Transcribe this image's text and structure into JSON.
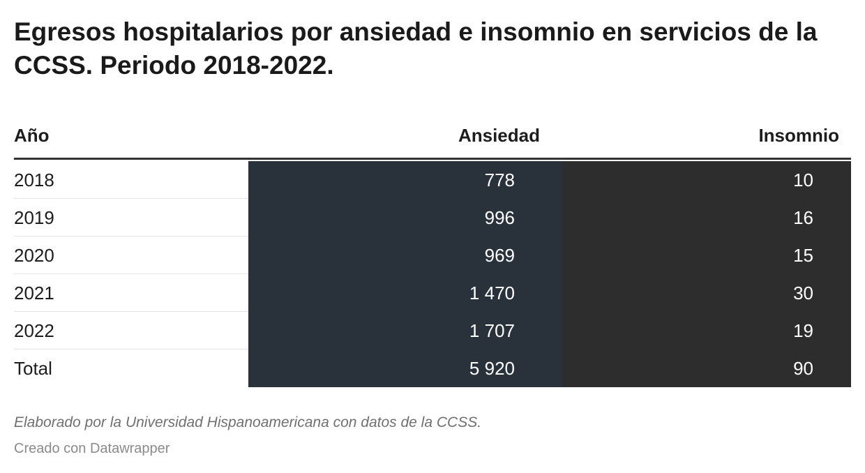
{
  "chart_data": {
    "type": "table",
    "title": "Egresos hospitalarios por ansiedad e insomnio en servicios de la CCSS. Periodo 2018-2022.",
    "columns": [
      "Año",
      "Ansiedad",
      "Insomnio"
    ],
    "rows": [
      [
        "2018",
        "778",
        "10"
      ],
      [
        "2019",
        "996",
        "16"
      ],
      [
        "2020",
        "969",
        "15"
      ],
      [
        "2021",
        "1 470",
        "30"
      ],
      [
        "2022",
        "1 707",
        "19"
      ],
      [
        "Total",
        "5 920",
        "90"
      ]
    ],
    "colors": {
      "ansiedad_bg": "#29323b",
      "insomnio_bg": "#2d2d2d"
    }
  },
  "notes": "Elaborado por la Universidad Hispanoamericana con datos de la CCSS.",
  "credit": "Creado con Datawrapper"
}
